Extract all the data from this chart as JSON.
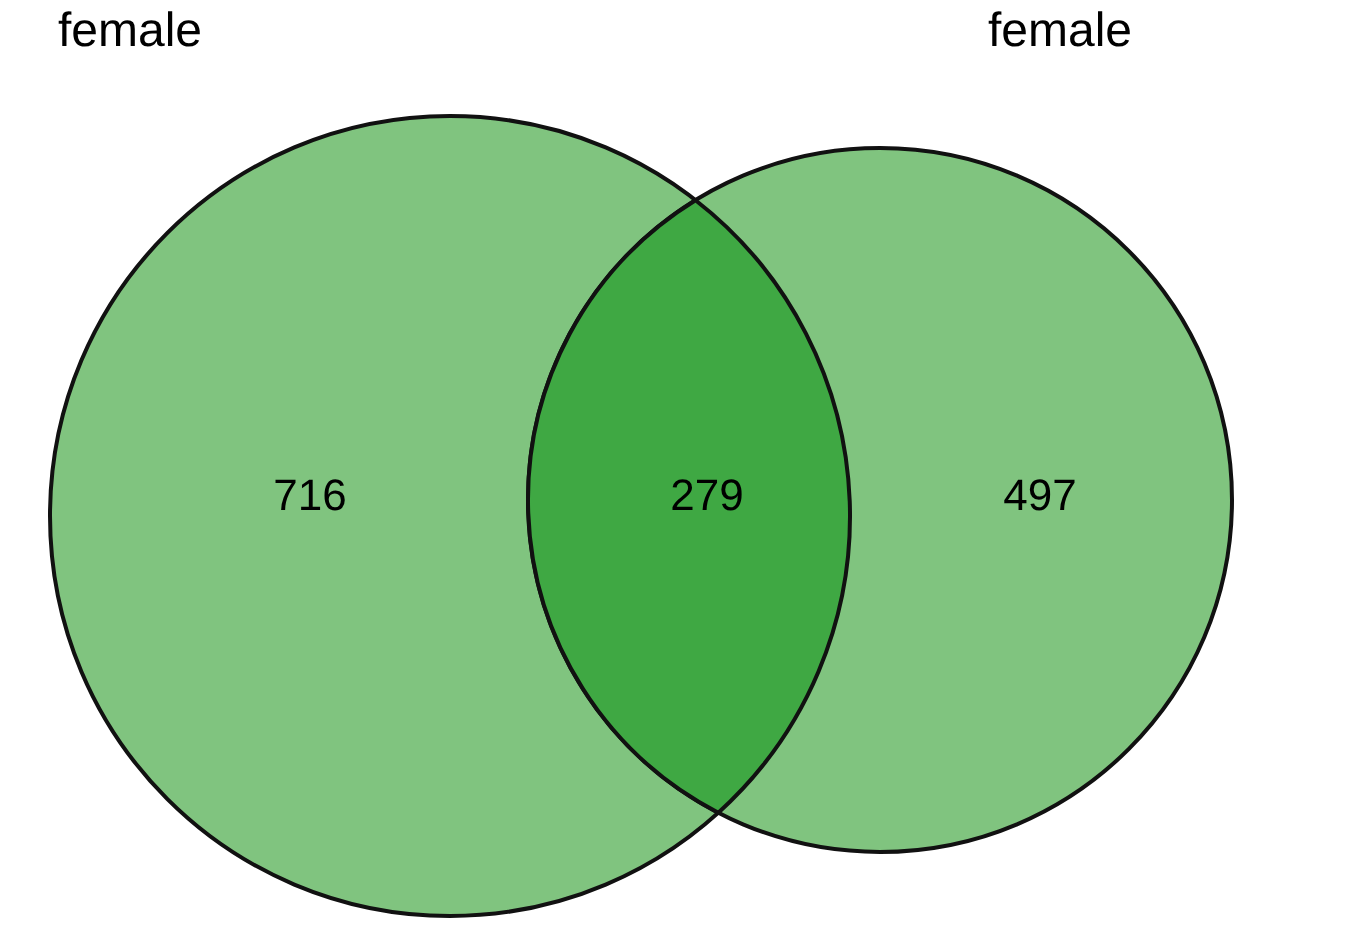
{
  "chart_data": {
    "type": "other",
    "categories": [
      null,
      null,
      null
    ],
    "values": [
      716,
      279,
      497
    ],
    "colors": [
      "#80c47f",
      "#3fa843",
      "#80c47f"
    ],
    "data_labels": true,
    "annotations": [
      "female",
      "female"
    ]
  }
}
